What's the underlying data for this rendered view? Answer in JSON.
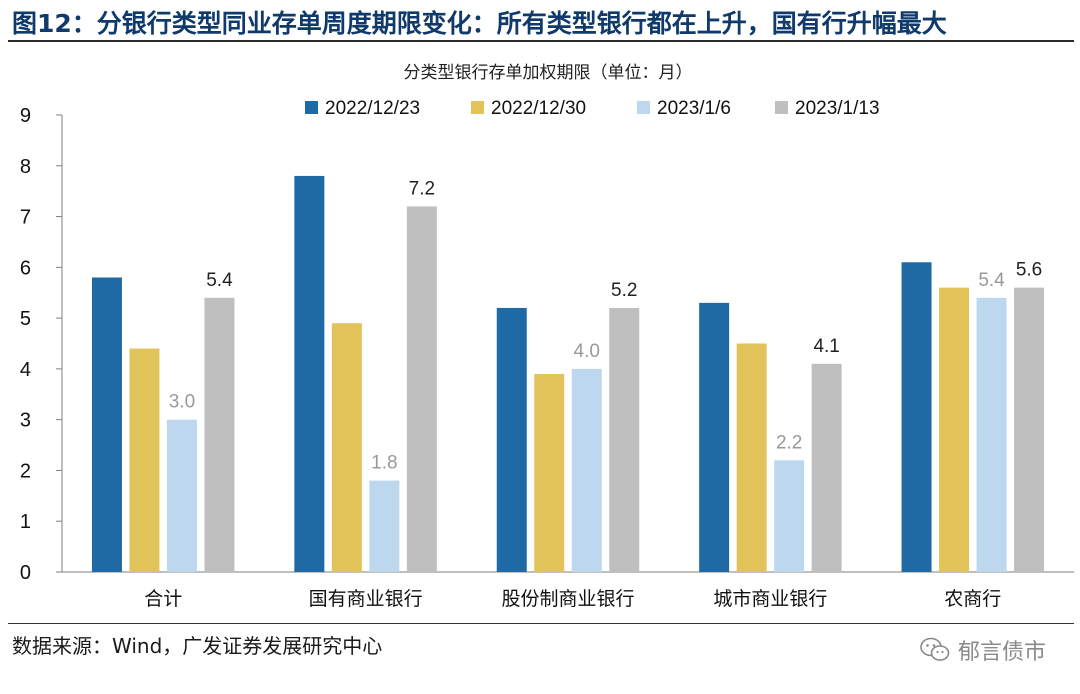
{
  "figure_title": "图12：分银行类型同业存单周度期限变化：所有类型银行都在上升，国有行升幅最大",
  "source": "数据来源：Wind，广发证券发展研究中心",
  "watermark": "郁言债市",
  "icon": "wechat-icon",
  "chart_data": {
    "type": "bar",
    "title": "分类型银行存单加权期限（单位：月）",
    "xlabel": "",
    "ylabel": "",
    "ylim": [
      0,
      9
    ],
    "yticks": [
      0,
      1,
      2,
      3,
      4,
      5,
      6,
      7,
      8,
      9
    ],
    "grid": false,
    "legend_position": "top",
    "categories": [
      "合计",
      "国有商业银行",
      "股份制商业银行",
      "城市商业银行",
      "农商行"
    ],
    "series": [
      {
        "name": "2022/12/23",
        "color": "#1f6aa5",
        "values": [
          5.8,
          7.8,
          5.2,
          5.3,
          6.1
        ]
      },
      {
        "name": "2022/12/30",
        "color": "#e2c35a",
        "values": [
          4.4,
          4.9,
          3.9,
          4.5,
          5.6
        ]
      },
      {
        "name": "2023/1/6",
        "color": "#bcd7ee",
        "values": [
          3.0,
          1.8,
          4.0,
          2.2,
          5.4
        ]
      },
      {
        "name": "2023/1/13",
        "color": "#bfbfbf",
        "values": [
          5.4,
          7.2,
          5.2,
          4.1,
          5.6
        ]
      }
    ],
    "data_labels": [
      {
        "series": 2,
        "category": 0,
        "text": "3.0",
        "color": "#999999"
      },
      {
        "series": 3,
        "category": 0,
        "text": "5.4",
        "color": "#222222"
      },
      {
        "series": 2,
        "category": 1,
        "text": "1.8",
        "color": "#999999"
      },
      {
        "series": 3,
        "category": 1,
        "text": "7.2",
        "color": "#222222"
      },
      {
        "series": 2,
        "category": 2,
        "text": "4.0",
        "color": "#999999"
      },
      {
        "series": 3,
        "category": 2,
        "text": "5.2",
        "color": "#222222"
      },
      {
        "series": 2,
        "category": 3,
        "text": "2.2",
        "color": "#999999"
      },
      {
        "series": 3,
        "category": 3,
        "text": "4.1",
        "color": "#222222"
      },
      {
        "series": 2,
        "category": 4,
        "text": "5.4",
        "color": "#999999"
      },
      {
        "series": 3,
        "category": 4,
        "text": "5.6",
        "color": "#222222"
      }
    ]
  }
}
